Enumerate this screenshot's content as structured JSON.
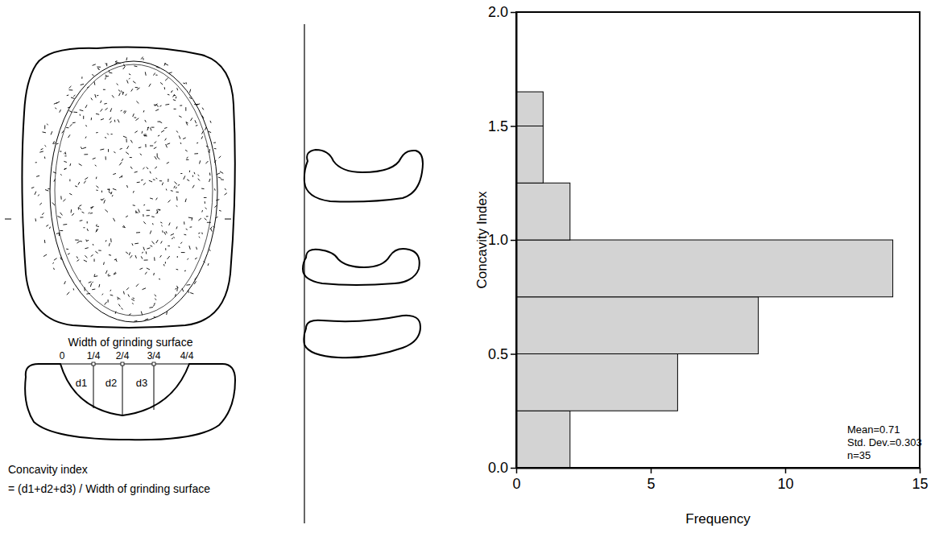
{
  "chart_data": {
    "type": "histogram",
    "orientation": "horizontal",
    "bins": [
      0,
      0.25,
      0.5,
      0.75,
      1.0,
      1.25,
      1.5,
      1.65
    ],
    "values": [
      2,
      6,
      9,
      14,
      2,
      1,
      1
    ],
    "color": "#d3d3d3",
    "xlim": [
      0,
      15
    ],
    "xticks": [
      0,
      5,
      10,
      15
    ],
    "ylim": [
      0,
      2
    ],
    "yticks": [
      {
        "value": 0,
        "label": "0.0"
      },
      {
        "value": 0.5,
        "label": "0.5"
      },
      {
        "value": 1,
        "label": "1.0"
      },
      {
        "value": 1.5,
        "label": "1.5"
      },
      {
        "value": 2,
        "label": "2.0"
      }
    ],
    "xlabel": "Frequency",
    "ylabel": "Concavity Index",
    "annotations": [
      "Mean=0.71",
      "Std. Dev.=0.303",
      "n=35"
    ],
    "grid": false
  },
  "diagram": {
    "section_title": "Width of grinding surface",
    "section_ticks": [
      "0",
      "1/4",
      "2/4",
      "3/4",
      "4/4"
    ],
    "depth_labels": [
      "d1",
      "d2",
      "d3"
    ],
    "formula": [
      "Concavity index",
      "= (d1+d2+d3) / Width of grinding surface"
    ]
  }
}
